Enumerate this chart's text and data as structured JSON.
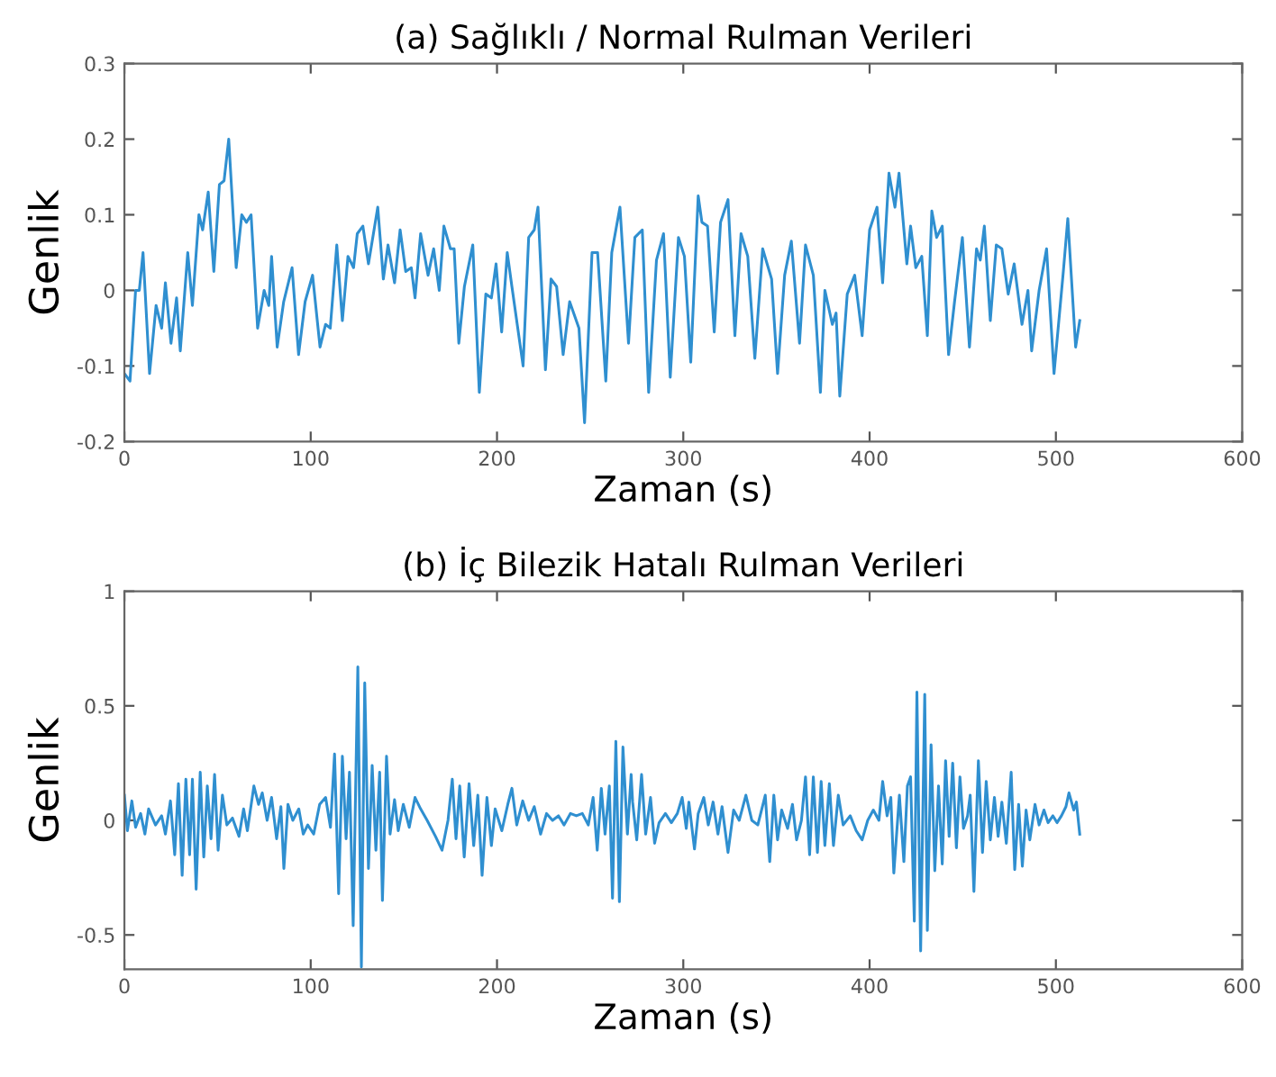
{
  "chart_data": [
    {
      "type": "line",
      "title": "(a) Sağlıklı / Normal Rulman Verileri",
      "xlabel": "Zaman (s)",
      "ylabel": "Genlik",
      "xlim": [
        0,
        600
      ],
      "xticks": [
        0,
        100,
        200,
        300,
        400,
        500,
        600
      ],
      "ylim": [
        -0.2,
        0.3
      ],
      "yticks": [
        -0.2,
        -0.1,
        0,
        0.1,
        0.2,
        0.3
      ],
      "grid": false,
      "marker": "none",
      "line_style": "solid",
      "series": [
        {
          "color": "#2f8fd0",
          "x": [
            0,
            3,
            6,
            8,
            10,
            13.5,
            17,
            20,
            22,
            25,
            28,
            30,
            34,
            36.5,
            40,
            42,
            45,
            48,
            51,
            53.5,
            56,
            60,
            63,
            65.5,
            68,
            71.5,
            75,
            77.5,
            79,
            82,
            85.5,
            90,
            93.5,
            97,
            101,
            105,
            108,
            110.5,
            114,
            117,
            120,
            123,
            125,
            128,
            131,
            136,
            139,
            141.5,
            145,
            148,
            151,
            154,
            156,
            159,
            163,
            166,
            169,
            171.5,
            175,
            177,
            179.5,
            182.5,
            187,
            190.5,
            194,
            197,
            199.5,
            202.5,
            205.5,
            208,
            214,
            217,
            220,
            222,
            226,
            229,
            232,
            235.5,
            239,
            244,
            247,
            251,
            254,
            258.4,
            261.6,
            266,
            270.6,
            274,
            278,
            281.4,
            285.6,
            289.4,
            293,
            297.4,
            300.6,
            304,
            308,
            310,
            313,
            316.6,
            320,
            324,
            327.7,
            331,
            334.6,
            338.4,
            342.6,
            347.4,
            350.6,
            354.4,
            358,
            362.4,
            365.6,
            369.8,
            373.6,
            376,
            380,
            382,
            384,
            388,
            392,
            396,
            400,
            404,
            407,
            410.4,
            413.6,
            415.8,
            420,
            422,
            424.8,
            428,
            431,
            433.4,
            436,
            439,
            442.4,
            445.6,
            449.8,
            453.6,
            457.4,
            459.4,
            461.6,
            464.8,
            468,
            471,
            474.4,
            477.6,
            481.8,
            485,
            487,
            491,
            495,
            499,
            504,
            506.4,
            510.6,
            512.8
          ],
          "values": [
            -0.11,
            -0.12,
            0,
            0,
            0.05,
            -0.11,
            -0.02,
            -0.05,
            0.01,
            -0.07,
            -0.01,
            -0.08,
            0.05,
            -0.02,
            0.1,
            0.08,
            0.13,
            0.025,
            0.14,
            0.145,
            0.2,
            0.03,
            0.1,
            0.09,
            0.1,
            -0.05,
            0,
            -0.02,
            0.045,
            -0.075,
            -0.015,
            0.03,
            -0.085,
            -0.015,
            0.02,
            -0.075,
            -0.045,
            -0.05,
            0.06,
            -0.04,
            0.045,
            0.03,
            0.075,
            0.085,
            0.035,
            0.11,
            0.015,
            0.06,
            0.01,
            0.08,
            0.025,
            0.03,
            -0.01,
            0.075,
            0.02,
            0.055,
            0,
            0.085,
            0.055,
            0.055,
            -0.07,
            0.005,
            0.06,
            -0.135,
            -0.005,
            -0.01,
            0.035,
            -0.055,
            0.05,
            0.005,
            -0.1,
            0.07,
            0.08,
            0.11,
            -0.105,
            0.015,
            0.005,
            -0.085,
            -0.015,
            -0.05,
            -0.175,
            0.05,
            0.05,
            -0.12,
            0.05,
            0.11,
            -0.07,
            0.07,
            0.08,
            -0.135,
            0.04,
            0.075,
            -0.115,
            0.07,
            0.045,
            -0.095,
            0.125,
            0.09,
            0.085,
            -0.055,
            0.09,
            0.12,
            -0.06,
            0.075,
            0.045,
            -0.09,
            0.055,
            0.015,
            -0.11,
            0.02,
            0.065,
            -0.07,
            0.06,
            0.02,
            -0.135,
            0,
            -0.045,
            -0.03,
            -0.14,
            -0.005,
            0.02,
            -0.06,
            0.08,
            0.11,
            0.01,
            0.155,
            0.11,
            0.155,
            0.035,
            0.085,
            0.03,
            0.045,
            -0.06,
            0.105,
            0.07,
            0.085,
            -0.085,
            -0.015,
            0.07,
            -0.075,
            0.055,
            0.04,
            0.085,
            -0.04,
            0.06,
            0.055,
            -0.005,
            0.035,
            -0.045,
            0,
            -0.08,
            0,
            0.055,
            -0.11,
            0.025,
            0.095,
            -0.075,
            -0.04
          ]
        }
      ]
    },
    {
      "type": "line",
      "title": "(b) İç Bilezik Hatalı Rulman Verileri",
      "xlabel": "Zaman (s)",
      "ylabel": "Genlik",
      "xlim": [
        0,
        600
      ],
      "xticks": [
        0,
        100,
        200,
        300,
        400,
        500,
        600
      ],
      "ylim": [
        -0.65,
        1
      ],
      "yticks": [
        -0.5,
        0,
        0.5,
        1
      ],
      "grid": false,
      "marker": "none",
      "line_style": "solid",
      "series": [
        {
          "color": "#2f8fd0",
          "x": [
            0,
            1.6,
            4,
            6,
            8.7,
            11,
            13,
            16.7,
            20,
            22,
            24.7,
            27,
            29,
            31,
            33,
            35,
            36.5,
            38.5,
            40.7,
            42.6,
            44.5,
            46.5,
            48.4,
            50.3,
            52.6,
            55,
            58,
            61.5,
            64,
            66,
            69.5,
            72,
            74,
            76.6,
            79,
            81.7,
            84,
            85.6,
            87.8,
            90.4,
            93.6,
            96,
            98.4,
            101.6,
            104.8,
            108,
            110.6,
            112.8,
            115,
            117,
            119,
            120.8,
            122.8,
            125.3,
            127.2,
            129,
            131,
            133,
            135,
            137,
            138.5,
            140.7,
            142.6,
            145,
            147,
            149.7,
            152.9,
            156,
            159,
            162.5,
            167,
            170.5,
            173.7,
            176,
            178,
            180,
            182.4,
            185,
            187.5,
            189.7,
            192,
            194.6,
            197,
            199,
            202.6,
            205.8,
            208,
            210.6,
            213.8,
            217,
            220,
            223.4,
            226.6,
            229.8,
            233,
            236,
            239.4,
            242.6,
            245.8,
            249,
            251.6,
            253.8,
            256,
            258,
            260.3,
            262,
            263.8,
            265.7,
            267.6,
            270,
            272,
            272.8,
            275,
            277.6,
            279.8,
            282.4,
            284.6,
            287,
            290.4,
            293.6,
            296.8,
            299.4,
            301.6,
            303,
            306,
            308,
            311,
            313.4,
            316,
            318.6,
            320.8,
            324,
            327,
            330,
            333.6,
            336.8,
            340,
            344,
            346.4,
            348.6,
            350.6,
            352.8,
            356,
            358.6,
            360.8,
            363.4,
            365.6,
            367.8,
            369.8,
            372,
            374,
            376,
            378.4,
            380.6,
            383.2,
            385.8,
            389.6,
            392.8,
            396,
            399,
            402,
            405,
            407,
            409.4,
            411.4,
            413,
            416,
            418.4,
            420.3,
            422,
            424,
            425.4,
            427.4,
            429.6,
            431,
            433,
            435,
            437,
            439,
            440.8,
            442.7,
            444.6,
            446.6,
            448.5,
            450.4,
            452.6,
            454,
            456,
            458.4,
            460.6,
            462.6,
            464.8,
            467,
            469,
            471,
            473.4,
            476,
            477.9,
            480,
            482,
            484,
            486,
            488.8,
            491,
            493.6,
            495.8,
            498.4,
            500.6,
            503,
            505.4,
            507,
            509.6,
            511,
            512.8
          ],
          "values": [
            0.11,
            -0.045,
            0.085,
            -0.03,
            0.03,
            -0.06,
            0.05,
            -0.02,
            0.02,
            -0.06,
            0.085,
            -0.15,
            0.16,
            -0.24,
            0.18,
            -0.15,
            0.18,
            -0.3,
            0.21,
            -0.16,
            0.15,
            -0.08,
            0.2,
            -0.13,
            0.11,
            -0.02,
            0.01,
            -0.07,
            0.05,
            -0.045,
            0.15,
            0.07,
            0.12,
            0,
            0.1,
            -0.08,
            0.06,
            -0.21,
            0.07,
            0,
            0.05,
            -0.06,
            -0.02,
            -0.06,
            0.07,
            0.1,
            -0.03,
            0.29,
            -0.32,
            0.28,
            -0.08,
            0.21,
            -0.46,
            0.67,
            -0.64,
            0.6,
            -0.21,
            0.24,
            -0.13,
            0.21,
            -0.35,
            0.28,
            -0.06,
            0.09,
            -0.045,
            0.07,
            -0.03,
            0.1,
            0.05,
            0,
            -0.07,
            -0.13,
            0,
            0.18,
            -0.08,
            0.15,
            -0.16,
            0.16,
            -0.11,
            0.11,
            -0.24,
            0.1,
            -0.11,
            0.05,
            -0.045,
            0.07,
            0.14,
            -0.02,
            0.085,
            0,
            0.06,
            -0.06,
            0.03,
            0,
            0.02,
            -0.02,
            0.03,
            0.02,
            0.03,
            -0.02,
            0.1,
            -0.13,
            0.14,
            -0.06,
            0.15,
            -0.34,
            0.345,
            -0.355,
            0.32,
            -0.06,
            0.2,
            0.08,
            -0.085,
            0.2,
            -0.06,
            0.1,
            -0.1,
            -0.01,
            0.03,
            -0.01,
            0.03,
            0.1,
            -0.035,
            0.08,
            -0.125,
            0.03,
            0.1,
            -0.02,
            0.08,
            -0.06,
            0.06,
            -0.14,
            0.045,
            0,
            0.11,
            0,
            -0.02,
            0.11,
            -0.18,
            0.11,
            -0.085,
            0.045,
            -0.035,
            0.07,
            -0.085,
            0,
            0.19,
            -0.15,
            0.19,
            -0.14,
            0.17,
            -0.11,
            0.16,
            -0.11,
            0.11,
            -0.02,
            0.02,
            -0.045,
            -0.085,
            0,
            0.045,
            0,
            0.17,
            0.02,
            0.1,
            -0.23,
            0.11,
            -0.18,
            0.15,
            0.19,
            -0.44,
            0.56,
            -0.57,
            0.55,
            -0.48,
            0.33,
            -0.22,
            0.15,
            -0.19,
            0.26,
            -0.07,
            0.25,
            -0.12,
            0.19,
            -0.035,
            0.02,
            0.11,
            -0.31,
            0.26,
            -0.14,
            0.17,
            -0.085,
            0.1,
            -0.07,
            0.08,
            -0.1,
            0.21,
            -0.215,
            0.07,
            -0.2,
            0.045,
            -0.085,
            0.07,
            -0.02,
            0.045,
            -0.01,
            0.02,
            -0.01,
            0.02,
            0.06,
            0.12,
            0.045,
            0.08,
            -0.06
          ]
        }
      ]
    }
  ]
}
